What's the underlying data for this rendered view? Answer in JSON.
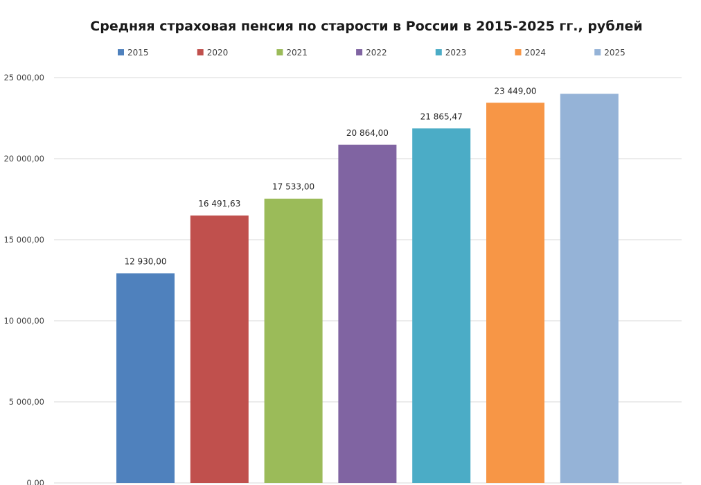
{
  "chart_data": {
    "type": "bar",
    "title": "Средняя страховая пенсия по старости в России в 2015-2025 гг., рублей",
    "xlabel": "",
    "ylabel": "",
    "ylim": [
      0,
      25000
    ],
    "y_ticks": [
      0,
      5000,
      10000,
      15000,
      20000,
      25000
    ],
    "y_tick_labels": [
      "0,00",
      "5 000,00",
      "10 000,00",
      "15 000,00",
      "20 000,00",
      "25 000,00"
    ],
    "grid": true,
    "legend_position": "top",
    "series": [
      {
        "name": "2015",
        "value": 12930.0,
        "label": "12 930,00",
        "color": "#4f81bd"
      },
      {
        "name": "2020",
        "value": 16491.63,
        "label": "16 491,63",
        "color": "#c0504d"
      },
      {
        "name": "2021",
        "value": 17533.0,
        "label": "17 533,00",
        "color": "#9bbb59"
      },
      {
        "name": "2022",
        "value": 20864.0,
        "label": "20 864,00",
        "color": "#8064a2"
      },
      {
        "name": "2023",
        "value": 21865.47,
        "label": "21 865,47",
        "color": "#4bacc6"
      },
      {
        "name": "2024",
        "value": 23449.0,
        "label": "23 449,00",
        "color": "#f79646"
      },
      {
        "name": "2025",
        "value": 24000.0,
        "label": "",
        "color": "#95b3d7"
      }
    ]
  }
}
